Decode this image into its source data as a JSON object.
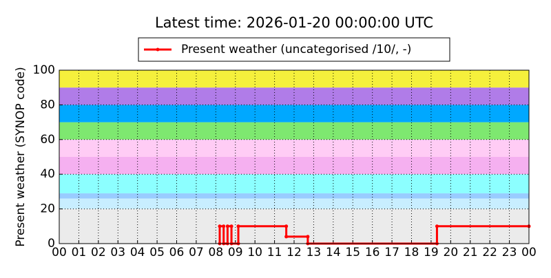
{
  "chart_data": {
    "type": "line",
    "title": "Latest time: 2026-01-20 00:00:00 UTC",
    "y_label": "Present weather (SYNOP code)",
    "xlim": [
      0,
      24
    ],
    "ylim": [
      0,
      100
    ],
    "xticks": [
      {
        "value": 0,
        "label": "00"
      },
      {
        "value": 1,
        "label": "01"
      },
      {
        "value": 2,
        "label": "02"
      },
      {
        "value": 3,
        "label": "03"
      },
      {
        "value": 4,
        "label": "04"
      },
      {
        "value": 5,
        "label": "05"
      },
      {
        "value": 6,
        "label": "06"
      },
      {
        "value": 7,
        "label": "07"
      },
      {
        "value": 8,
        "label": "08"
      },
      {
        "value": 9,
        "label": "09"
      },
      10,
      11,
      12,
      13,
      14,
      15,
      16,
      17,
      18,
      19,
      20,
      21,
      22,
      23,
      {
        "value": 24,
        "label": "00"
      }
    ],
    "yticks": [
      0,
      20,
      40,
      60,
      80,
      100
    ],
    "grid": true,
    "bands": [
      {
        "from": 0,
        "to": 20,
        "color": "#ebebeb"
      },
      {
        "from": 20,
        "to": 26,
        "color": "#c8eeff"
      },
      {
        "from": 26,
        "to": 29,
        "color": "#99ccff"
      },
      {
        "from": 29,
        "to": 40,
        "color": "#8cffff"
      },
      {
        "from": 40,
        "to": 50,
        "color": "#f5b0f0"
      },
      {
        "from": 50,
        "to": 60,
        "color": "#ffccf5"
      },
      {
        "from": 60,
        "to": 70,
        "color": "#7ee870"
      },
      {
        "from": 70,
        "to": 80,
        "color": "#00a8ff"
      },
      {
        "from": 80,
        "to": 90,
        "color": "#b07ce8"
      },
      {
        "from": 90,
        "to": 100,
        "color": "#f5f03c"
      }
    ],
    "series": [
      {
        "name": "Present weather (uncategorised /10/, -)",
        "color": "#ff0000",
        "x": [
          8.2,
          8.2,
          8.4,
          8.4,
          8.6,
          8.6,
          8.8,
          8.8,
          9.15,
          9.15,
          11.6,
          11.6,
          12.7,
          12.7,
          19.3,
          19.3,
          24
        ],
        "values": [
          0,
          10,
          10,
          0,
          0,
          10,
          10,
          0,
          0,
          10,
          10,
          4,
          4,
          0,
          0,
          10,
          10
        ]
      }
    ]
  }
}
